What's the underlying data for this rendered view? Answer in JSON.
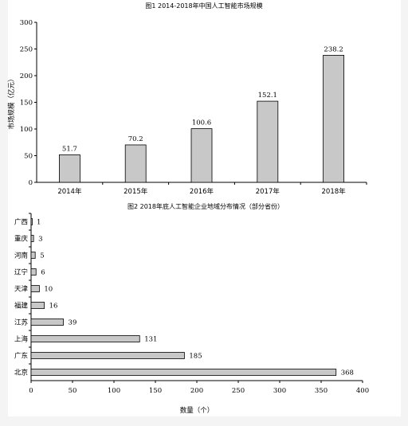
{
  "chart_data": [
    {
      "type": "bar",
      "title": "图1   2014-2018年中国人工智能市场规模",
      "ylabel": "市场规模（亿元）",
      "xlabel": "",
      "categories": [
        "2014年",
        "2015年",
        "2016年",
        "2017年",
        "2018年"
      ],
      "values": [
        51.7,
        70.2,
        100.6,
        152.1,
        238.2
      ],
      "value_labels": [
        "51.7",
        "70.2",
        "100.6",
        "152.1",
        "238.2"
      ],
      "ylim": [
        0,
        300
      ],
      "yticks": [
        "0",
        "50",
        "100",
        "150",
        "200",
        "250",
        "300"
      ],
      "grid": false,
      "legend": "none",
      "bar_color": "#c8c8c8"
    },
    {
      "type": "bar",
      "orientation": "horizontal",
      "title": "图2   2018年底人工智能企业地域分布情况（部分省份）",
      "xlabel": "数量（个）",
      "ylabel": "",
      "categories": [
        "广西",
        "重庆",
        "河南",
        "辽宁",
        "天津",
        "福建",
        "江苏",
        "上海",
        "广东",
        "北京"
      ],
      "values": [
        1,
        3,
        5,
        6,
        10,
        16,
        39,
        131,
        185,
        368
      ],
      "value_labels": [
        "1",
        "3",
        "5",
        "6",
        "10",
        "16",
        "39",
        "131",
        "185",
        "368"
      ],
      "xlim": [
        0,
        400
      ],
      "xticks": [
        "0",
        "50",
        "100",
        "150",
        "200",
        "250",
        "300",
        "350",
        "400"
      ],
      "grid": false,
      "legend": "none",
      "bar_color": "#c8c8c8"
    }
  ]
}
